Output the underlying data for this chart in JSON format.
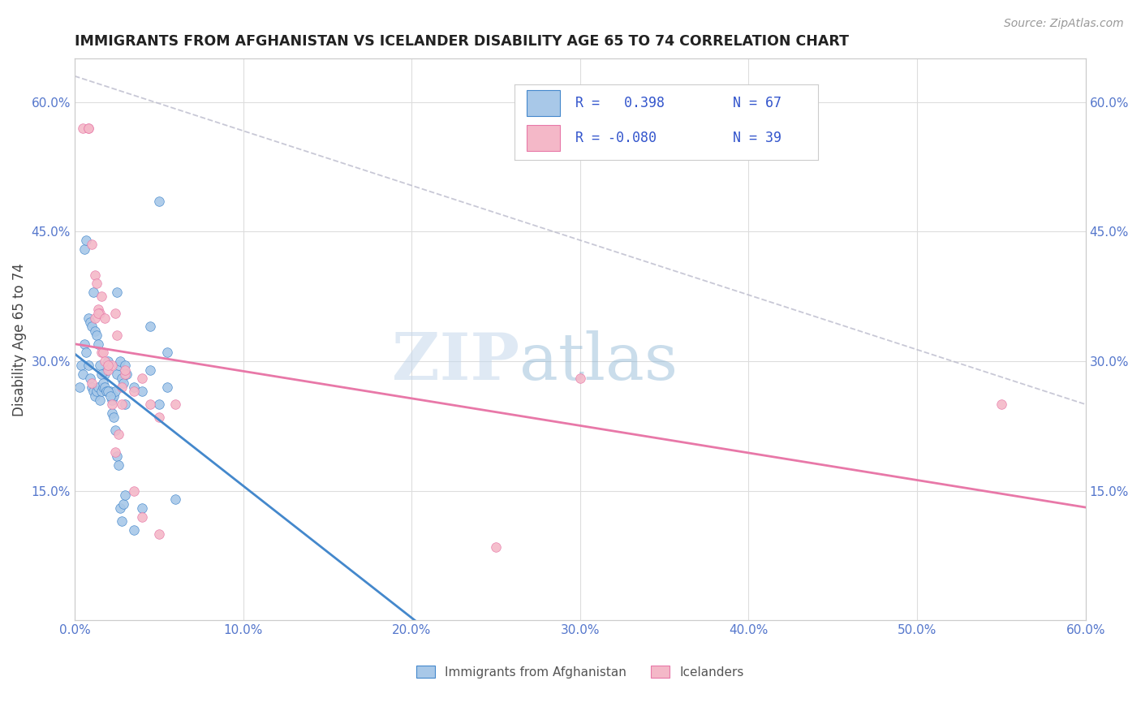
{
  "title": "IMMIGRANTS FROM AFGHANISTAN VS ICELANDER DISABILITY AGE 65 TO 74 CORRELATION CHART",
  "source": "Source: ZipAtlas.com",
  "ylabel": "Disability Age 65 to 74",
  "xlim": [
    0.0,
    0.6
  ],
  "ylim": [
    0.0,
    0.65
  ],
  "x_ticks": [
    0.0,
    0.1,
    0.2,
    0.3,
    0.4,
    0.5,
    0.6
  ],
  "x_tick_labels": [
    "0.0%",
    "10.0%",
    "20.0%",
    "30.0%",
    "40.0%",
    "50.0%",
    "60.0%"
  ],
  "y_ticks": [
    0.15,
    0.3,
    0.45,
    0.6
  ],
  "y_tick_labels": [
    "15.0%",
    "30.0%",
    "45.0%",
    "60.0%"
  ],
  "legend_label1": "Immigrants from Afghanistan",
  "legend_label2": "Icelanders",
  "color_blue": "#a8c8e8",
  "color_pink": "#f4b8c8",
  "color_blue_line": "#4488cc",
  "color_pink_line": "#e878a8",
  "color_dashed": "#bbbbcc",
  "afghanistan_x": [
    0.003,
    0.004,
    0.005,
    0.006,
    0.007,
    0.008,
    0.009,
    0.01,
    0.011,
    0.012,
    0.013,
    0.014,
    0.015,
    0.016,
    0.017,
    0.018,
    0.019,
    0.02,
    0.021,
    0.022,
    0.023,
    0.024,
    0.025,
    0.026,
    0.027,
    0.028,
    0.029,
    0.03,
    0.031,
    0.035,
    0.04,
    0.045,
    0.05,
    0.006,
    0.007,
    0.008,
    0.009,
    0.01,
    0.011,
    0.012,
    0.013,
    0.014,
    0.015,
    0.016,
    0.017,
    0.018,
    0.019,
    0.02,
    0.021,
    0.022,
    0.023,
    0.024,
    0.025,
    0.026,
    0.027,
    0.028,
    0.029,
    0.03,
    0.035,
    0.04,
    0.045,
    0.05,
    0.055,
    0.06,
    0.025,
    0.03,
    0.055
  ],
  "afghanistan_y": [
    0.27,
    0.295,
    0.285,
    0.32,
    0.31,
    0.295,
    0.28,
    0.27,
    0.265,
    0.26,
    0.265,
    0.27,
    0.255,
    0.265,
    0.27,
    0.285,
    0.29,
    0.3,
    0.265,
    0.255,
    0.26,
    0.265,
    0.285,
    0.295,
    0.3,
    0.28,
    0.275,
    0.295,
    0.285,
    0.27,
    0.265,
    0.29,
    0.25,
    0.43,
    0.44,
    0.35,
    0.345,
    0.34,
    0.38,
    0.335,
    0.33,
    0.32,
    0.295,
    0.285,
    0.275,
    0.27,
    0.265,
    0.265,
    0.26,
    0.24,
    0.235,
    0.22,
    0.19,
    0.18,
    0.13,
    0.115,
    0.135,
    0.145,
    0.105,
    0.13,
    0.34,
    0.485,
    0.31,
    0.14,
    0.38,
    0.25,
    0.27
  ],
  "icelander_x": [
    0.005,
    0.008,
    0.01,
    0.012,
    0.013,
    0.014,
    0.015,
    0.016,
    0.017,
    0.018,
    0.02,
    0.022,
    0.024,
    0.025,
    0.028,
    0.03,
    0.035,
    0.04,
    0.045,
    0.05,
    0.06,
    0.008,
    0.01,
    0.012,
    0.014,
    0.016,
    0.018,
    0.02,
    0.022,
    0.024,
    0.026,
    0.028,
    0.03,
    0.035,
    0.04,
    0.05,
    0.3,
    0.25,
    0.55
  ],
  "icelander_y": [
    0.57,
    0.57,
    0.435,
    0.4,
    0.39,
    0.36,
    0.355,
    0.31,
    0.31,
    0.3,
    0.29,
    0.295,
    0.355,
    0.33,
    0.25,
    0.285,
    0.265,
    0.28,
    0.25,
    0.235,
    0.25,
    0.57,
    0.275,
    0.35,
    0.355,
    0.375,
    0.35,
    0.295,
    0.25,
    0.195,
    0.215,
    0.27,
    0.29,
    0.15,
    0.12,
    0.1,
    0.28,
    0.085,
    0.25
  ],
  "watermark_zip": "ZIP",
  "watermark_atlas": "atlas",
  "background_color": "#ffffff",
  "grid_color": "#dddddd",
  "tick_color": "#5577cc",
  "legend_text_color": "#3355cc",
  "legend_R1": "R =   0.398",
  "legend_N1": "N = 67",
  "legend_R2": "R = -0.080",
  "legend_N2": "N = 39"
}
